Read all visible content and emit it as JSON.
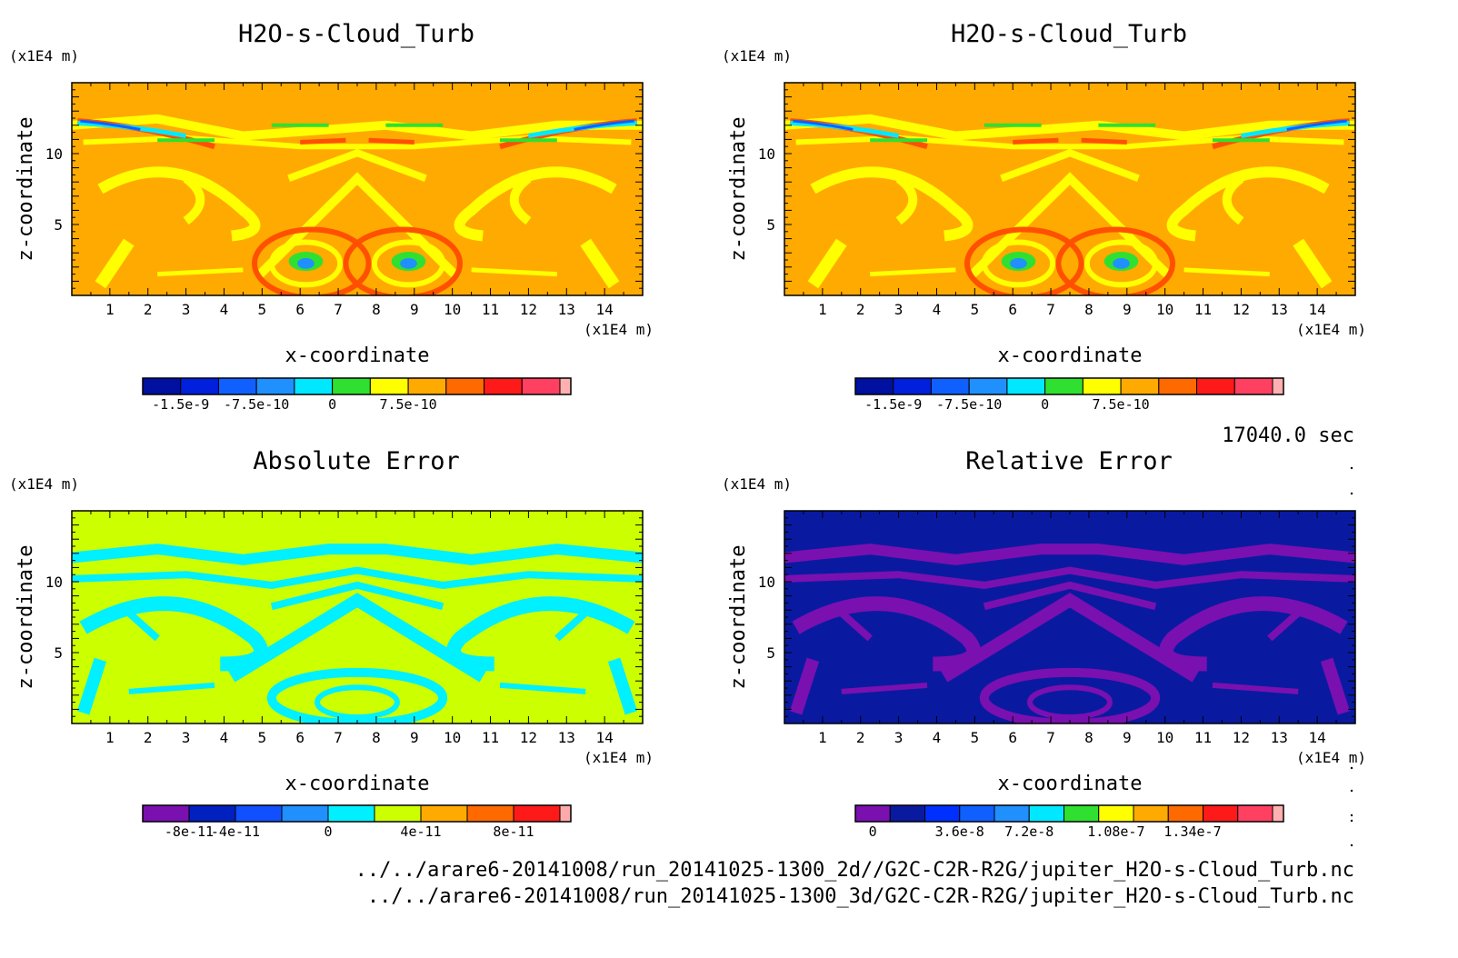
{
  "chart_data": [
    {
      "type": "heatmap",
      "title": "H2O-s-Cloud_Turb",
      "xlabel": "x-coordinate",
      "ylabel": "z-coordinate",
      "x_unit": "(x1E4 m)",
      "y_unit": "(x1E4 m)",
      "xticks": [
        "1",
        "2",
        "3",
        "4",
        "5",
        "6",
        "7",
        "8",
        "9",
        "10",
        "11",
        "12",
        "13",
        "14"
      ],
      "yticks": [
        "5",
        "10"
      ],
      "xlim": [
        0,
        15
      ],
      "ylim": [
        0,
        15
      ],
      "background_color": "#ffaa00",
      "colorbar": {
        "colors": [
          "#0010a0",
          "#0020dd",
          "#1060ff",
          "#2090ff",
          "#00e8ff",
          "#30e030",
          "#ffff00",
          "#ffaa00",
          "#ff6a00",
          "#ff1a1a",
          "#ff4060",
          "#ffb0b0"
        ],
        "tick_labels": [
          "-1.5e-9",
          "-7.5e-10",
          "0",
          "7.5e-10"
        ]
      }
    },
    {
      "type": "heatmap",
      "title": "H2O-s-Cloud_Turb",
      "xlabel": "x-coordinate",
      "ylabel": "z-coordinate",
      "x_unit": "(x1E4 m)",
      "y_unit": "(x1E4 m)",
      "xticks": [
        "1",
        "2",
        "3",
        "4",
        "5",
        "6",
        "7",
        "8",
        "9",
        "10",
        "11",
        "12",
        "13",
        "14"
      ],
      "yticks": [
        "5",
        "10"
      ],
      "xlim": [
        0,
        15
      ],
      "ylim": [
        0,
        15
      ],
      "background_color": "#ffaa00",
      "colorbar": {
        "colors": [
          "#0010a0",
          "#0020dd",
          "#1060ff",
          "#2090ff",
          "#00e8ff",
          "#30e030",
          "#ffff00",
          "#ffaa00",
          "#ff6a00",
          "#ff1a1a",
          "#ff4060",
          "#ffb0b0"
        ],
        "tick_labels": [
          "-1.5e-9",
          "-7.5e-10",
          "0",
          "7.5e-10"
        ]
      }
    },
    {
      "type": "heatmap",
      "title": "Absolute Error",
      "xlabel": "x-coordinate",
      "ylabel": "z-coordinate",
      "x_unit": "(x1E4 m)",
      "y_unit": "(x1E4 m)",
      "xticks": [
        "1",
        "2",
        "3",
        "4",
        "5",
        "6",
        "7",
        "8",
        "9",
        "10",
        "11",
        "12",
        "13",
        "14"
      ],
      "yticks": [
        "5",
        "10"
      ],
      "xlim": [
        0,
        15
      ],
      "ylim": [
        0,
        15
      ],
      "background_color": "#ccff00",
      "colorbar": {
        "colors": [
          "#7a10b0",
          "#0020c0",
          "#1050ff",
          "#2090ff",
          "#00f0ff",
          "#ccff00",
          "#ffaa00",
          "#ff6a00",
          "#ff1a1a",
          "#ffaaaa"
        ],
        "tick_labels": [
          "-8e-11",
          "-4e-11",
          "0",
          "4e-11",
          "8e-11"
        ]
      }
    },
    {
      "type": "heatmap",
      "title": "Relative Error",
      "xlabel": "x-coordinate",
      "ylabel": "z-coordinate",
      "x_unit": "(x1E4 m)",
      "y_unit": "(x1E4 m)",
      "xticks": [
        "1",
        "2",
        "3",
        "4",
        "5",
        "6",
        "7",
        "8",
        "9",
        "10",
        "11",
        "12",
        "13",
        "14"
      ],
      "yticks": [
        "5",
        "10"
      ],
      "xlim": [
        0,
        15
      ],
      "ylim": [
        0,
        15
      ],
      "background_color": "#0a1aa0",
      "colorbar": {
        "colors": [
          "#7a10b0",
          "#0a1aa0",
          "#0030ff",
          "#1060ff",
          "#2090ff",
          "#00e8ff",
          "#30e030",
          "#ffff00",
          "#ffaa00",
          "#ff6a00",
          "#ff1a1a",
          "#ff4060",
          "#ffb0b0"
        ],
        "tick_labels": [
          "0",
          "3.6e-8",
          "7.2e-8",
          "1.08e-7",
          "1.34e-7"
        ]
      }
    }
  ],
  "time_label": "17040.0 sec",
  "footer": {
    "file1": "../../arare6-20141008/run_20141025-1300_2d//G2C-C2R-R2G/jupiter_H2O-s-Cloud_Turb.nc",
    "file2": "../../arare6-20141008/run_20141025-1300_3d/G2C-C2R-R2G/jupiter_H2O-s-Cloud_Turb.nc"
  }
}
